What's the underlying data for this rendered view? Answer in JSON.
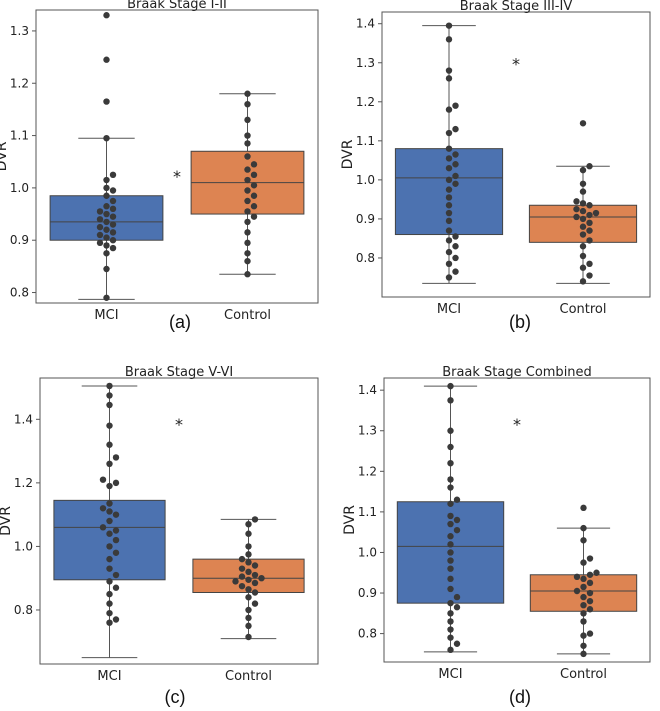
{
  "colors": {
    "mci": "#4c72b0",
    "control": "#dd8452",
    "point": "#3a3a3a",
    "frame": "#555555",
    "whisker": "#555555"
  },
  "chart_data": [
    {
      "type": "box",
      "title": "Braak Stage I-II",
      "ylabel": "DVR",
      "caption": "(a)",
      "ylim": [
        0.78,
        1.34
      ],
      "yticks": [
        0.8,
        0.9,
        1.0,
        1.1,
        1.2,
        1.3
      ],
      "categories": [
        "MCI",
        "Control"
      ],
      "significance": "*",
      "series": [
        {
          "name": "MCI",
          "whislo": 0.787,
          "q1": 0.9,
          "median": 0.935,
          "q3": 0.985,
          "whishi": 1.095,
          "points": [
            1.33,
            1.245,
            1.165,
            1.095,
            1.025,
            1.015,
            1.0,
            0.995,
            0.985,
            0.975,
            0.965,
            0.96,
            0.955,
            0.95,
            0.945,
            0.94,
            0.935,
            0.93,
            0.925,
            0.92,
            0.915,
            0.91,
            0.905,
            0.9,
            0.895,
            0.89,
            0.885,
            0.875,
            0.845,
            0.79
          ]
        },
        {
          "name": "Control",
          "whislo": 0.835,
          "q1": 0.95,
          "median": 1.01,
          "q3": 1.07,
          "whishi": 1.18,
          "points": [
            1.18,
            1.16,
            1.13,
            1.1,
            1.085,
            1.06,
            1.045,
            1.035,
            1.025,
            1.015,
            1.005,
            0.995,
            0.985,
            0.975,
            0.965,
            0.955,
            0.945,
            0.935,
            0.915,
            0.895,
            0.875,
            0.86,
            0.835
          ]
        }
      ]
    },
    {
      "type": "box",
      "title": "Braak Stage III-IV",
      "ylabel": "DVR",
      "caption": "(b)",
      "ylim": [
        0.7,
        1.43
      ],
      "yticks": [
        0.8,
        0.9,
        1.0,
        1.1,
        1.2,
        1.3,
        1.4
      ],
      "categories": [
        "MCI",
        "Control"
      ],
      "significance": "*",
      "series": [
        {
          "name": "MCI",
          "whislo": 0.735,
          "q1": 0.86,
          "median": 1.005,
          "q3": 1.08,
          "whishi": 1.395,
          "points": [
            1.395,
            1.36,
            1.28,
            1.26,
            1.19,
            1.18,
            1.13,
            1.12,
            1.08,
            1.065,
            1.055,
            1.04,
            1.03,
            1.01,
            1.0,
            0.99,
            0.975,
            0.955,
            0.935,
            0.915,
            0.895,
            0.87,
            0.855,
            0.845,
            0.83,
            0.815,
            0.8,
            0.785,
            0.765,
            0.75
          ]
        },
        {
          "name": "Control",
          "whislo": 0.735,
          "q1": 0.84,
          "median": 0.905,
          "q3": 0.935,
          "whishi": 1.035,
          "points": [
            1.145,
            1.035,
            1.025,
            0.99,
            0.97,
            0.945,
            0.94,
            0.935,
            0.925,
            0.92,
            0.915,
            0.91,
            0.905,
            0.9,
            0.89,
            0.88,
            0.87,
            0.86,
            0.845,
            0.83,
            0.805,
            0.785,
            0.775,
            0.755,
            0.74
          ]
        }
      ]
    },
    {
      "type": "box",
      "title": "Braak Stage V-VI",
      "ylabel": "DVR",
      "caption": "(c)",
      "ylim": [
        0.63,
        1.53
      ],
      "yticks": [
        0.8,
        1.0,
        1.2,
        1.4
      ],
      "categories": [
        "MCI",
        "Control"
      ],
      "significance": "*",
      "series": [
        {
          "name": "MCI",
          "whislo": 0.65,
          "q1": 0.895,
          "median": 1.06,
          "q3": 1.145,
          "whishi": 1.505,
          "points": [
            1.505,
            1.475,
            1.445,
            1.38,
            1.32,
            1.28,
            1.26,
            1.21,
            1.2,
            1.19,
            1.135,
            1.12,
            1.11,
            1.1,
            1.08,
            1.06,
            1.05,
            1.04,
            1.02,
            1.0,
            0.98,
            0.96,
            0.93,
            0.91,
            0.89,
            0.87,
            0.85,
            0.82,
            0.79,
            0.77,
            0.76
          ]
        },
        {
          "name": "Control",
          "whislo": 0.71,
          "q1": 0.855,
          "median": 0.9,
          "q3": 0.96,
          "whishi": 1.085,
          "points": [
            1.085,
            1.07,
            1.04,
            1.0,
            0.975,
            0.96,
            0.95,
            0.94,
            0.93,
            0.92,
            0.91,
            0.905,
            0.9,
            0.895,
            0.89,
            0.885,
            0.875,
            0.865,
            0.855,
            0.84,
            0.82,
            0.8,
            0.775,
            0.75,
            0.715
          ]
        }
      ]
    },
    {
      "type": "box",
      "title": "Braak Stage Combined",
      "ylabel": "DVR",
      "caption": "(d)",
      "ylim": [
        0.73,
        1.43
      ],
      "yticks": [
        0.8,
        0.9,
        1.0,
        1.1,
        1.2,
        1.3,
        1.4
      ],
      "categories": [
        "MCI",
        "Control"
      ],
      "significance": "*",
      "series": [
        {
          "name": "MCI",
          "whislo": 0.755,
          "q1": 0.875,
          "median": 1.015,
          "q3": 1.125,
          "whishi": 1.41,
          "points": [
            1.41,
            1.375,
            1.3,
            1.26,
            1.22,
            1.18,
            1.16,
            1.13,
            1.12,
            1.09,
            1.08,
            1.07,
            1.055,
            1.04,
            1.02,
            1.0,
            0.98,
            0.96,
            0.935,
            0.91,
            0.89,
            0.875,
            0.865,
            0.85,
            0.83,
            0.81,
            0.79,
            0.775,
            0.76
          ]
        },
        {
          "name": "Control",
          "whislo": 0.75,
          "q1": 0.855,
          "median": 0.905,
          "q3": 0.945,
          "whishi": 1.06,
          "points": [
            1.11,
            1.06,
            1.03,
            0.985,
            0.975,
            0.95,
            0.945,
            0.94,
            0.935,
            0.925,
            0.915,
            0.905,
            0.9,
            0.89,
            0.88,
            0.87,
            0.86,
            0.85,
            0.83,
            0.8,
            0.795,
            0.77,
            0.75
          ]
        }
      ]
    }
  ]
}
